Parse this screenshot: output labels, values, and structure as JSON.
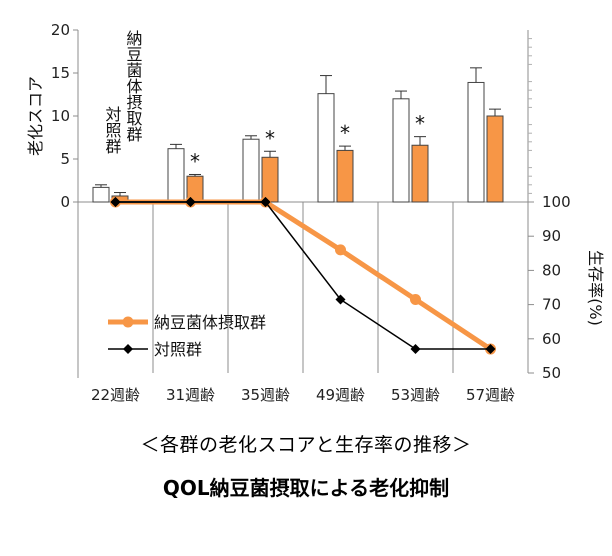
{
  "chart_data": {
    "type": "bar+line",
    "categories": [
      "22週齢",
      "31週齢",
      "35週齢",
      "49週齢",
      "53週齢",
      "57週齢"
    ],
    "bar_axis": {
      "label": "老化スコア",
      "ticks": [
        "0",
        "5",
        "10",
        "15",
        "20"
      ],
      "range": [
        0,
        20
      ]
    },
    "bar_series": [
      {
        "name": "対照群",
        "color": "#ffffff",
        "values": [
          1.7,
          6.2,
          7.3,
          12.6,
          12.0,
          13.9
        ],
        "errors": [
          0.3,
          0.5,
          0.4,
          2.1,
          0.9,
          1.7
        ],
        "marks": [
          "",
          "",
          "",
          "",
          "",
          ""
        ]
      },
      {
        "name": "納豆菌体摂取群",
        "color": "#f79646",
        "values": [
          0.7,
          3.0,
          5.2,
          6.0,
          6.6,
          10.0
        ],
        "errors": [
          0.4,
          0.2,
          0.7,
          0.5,
          1.0,
          0.8
        ],
        "marks": [
          "",
          "*",
          "*",
          "*",
          "*",
          ""
        ]
      }
    ],
    "line_axis": {
      "label": "生存率(%)",
      "ticks": [
        "50",
        "60",
        "70",
        "80",
        "90",
        "100"
      ],
      "range": [
        50,
        100
      ]
    },
    "line_series": [
      {
        "name": "納豆菌体摂取群",
        "color": "#f79646",
        "values": [
          100,
          100,
          100,
          86,
          71.5,
          57
        ]
      },
      {
        "name": "対照群",
        "color": "#000000",
        "values": [
          100,
          100,
          100,
          71.5,
          57,
          57
        ]
      }
    ]
  },
  "subtitle": "＜各群の老化スコアと生存率の推移＞",
  "title": "QOL納豆菌摂取による老化抑制"
}
